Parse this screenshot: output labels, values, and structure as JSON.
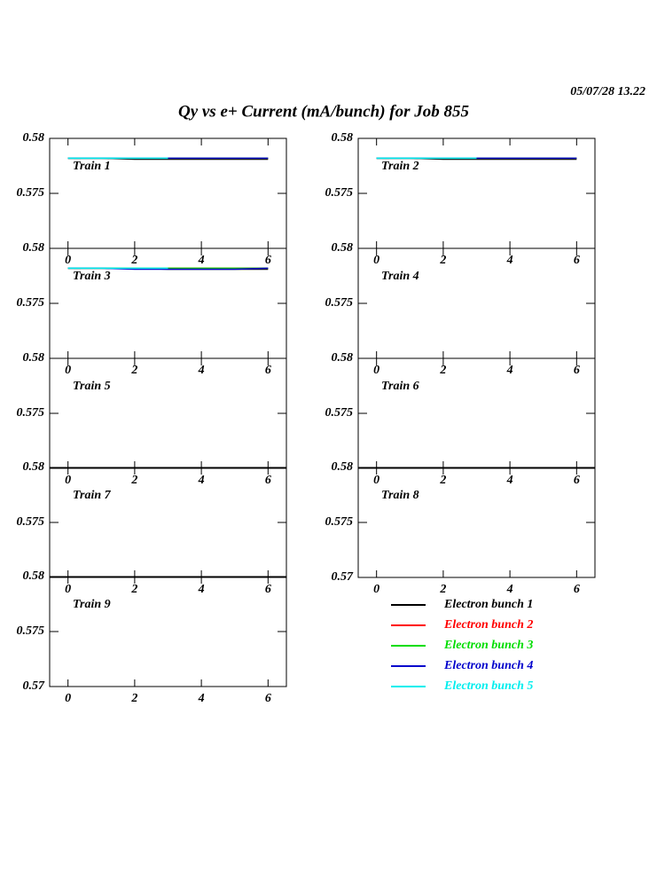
{
  "title": "Qy vs e+ Current (mA/bunch) for Job 855",
  "timestamp": "05/07/28   13.22",
  "chart_data": [
    {
      "type": "line",
      "title": "Train 1",
      "xlim": [
        -0.55,
        6.55
      ],
      "ylim": [
        0.57,
        0.58
      ],
      "xticks": [
        0,
        2,
        4,
        6
      ],
      "yticks": [
        0.575,
        0.58
      ],
      "x": [
        0,
        1,
        2,
        3,
        4,
        5,
        6
      ],
      "series": [
        {
          "name": "Electron bunch 1",
          "color": "#000000",
          "values": [
            0.5782,
            0.5782,
            0.5781,
            0.5781,
            0.5781,
            0.5781,
            0.5781
          ]
        },
        {
          "name": "Electron bunch 2",
          "color": "#ff0000",
          "values": [
            0.5782,
            0.5782,
            0.5782,
            0.5782,
            0.5782,
            0.5782,
            0.5782
          ]
        },
        {
          "name": "Electron bunch 3",
          "color": "#00dd00",
          "values": [
            0.5782,
            0.5782,
            0.5782,
            0.5782,
            0.5782,
            0.5782,
            0.5782
          ]
        },
        {
          "name": "Electron bunch 4",
          "color": "#0000cc",
          "values": [
            0.5782,
            0.5782,
            0.5782,
            0.5782,
            0.5782,
            0.5782,
            0.5782
          ]
        },
        {
          "name": "Electron bunch 5",
          "color": "#00eeee",
          "values": [
            0.5782,
            0.5782,
            0.5782,
            0.5782,
            null,
            null,
            null
          ]
        }
      ]
    },
    {
      "type": "line",
      "title": "Train 2",
      "xlim": [
        -0.55,
        6.55
      ],
      "ylim": [
        0.57,
        0.58
      ],
      "xticks": [
        0,
        2,
        4,
        6
      ],
      "yticks": [
        0.575,
        0.58
      ],
      "x": [
        0,
        1,
        2,
        3,
        4,
        5,
        6
      ],
      "series": [
        {
          "values": [
            0.5782,
            0.5782,
            0.5781,
            0.5781,
            0.5781,
            0.5781,
            0.5781
          ]
        },
        {
          "values": [
            0.5782,
            0.5782,
            0.5782,
            0.5782,
            0.5782,
            0.5782,
            0.5782
          ]
        },
        {
          "values": [
            0.5782,
            0.5782,
            0.5782,
            0.5782,
            0.5782,
            0.5782,
            0.5782
          ]
        },
        {
          "values": [
            0.5782,
            0.5782,
            0.5782,
            0.5782,
            0.5782,
            0.5782,
            0.5782
          ]
        },
        {
          "values": [
            0.5782,
            0.5782,
            0.5782,
            0.5782,
            null,
            null,
            null
          ]
        }
      ]
    },
    {
      "type": "line",
      "title": "Train 3",
      "xlim": [
        -0.55,
        6.55
      ],
      "ylim": [
        0.57,
        0.58
      ],
      "xticks": [
        0,
        2,
        4,
        6
      ],
      "yticks": [
        0.575,
        0.58
      ],
      "x": [
        0,
        1,
        2,
        3,
        4,
        5,
        6
      ],
      "series": [
        {
          "values": [
            0.5782,
            0.5782,
            0.5782,
            0.5781,
            0.5781,
            0.5781,
            0.5781
          ]
        },
        {
          "values": [
            0.5782,
            0.5782,
            0.5782,
            0.5782,
            0.5782,
            0.5782,
            0.5782
          ]
        },
        {
          "values": [
            0.5782,
            0.5782,
            0.5782,
            0.5782,
            0.5782,
            0.5782,
            0.5782
          ]
        },
        {
          "values": [
            0.5782,
            0.5782,
            0.5781,
            0.5781,
            0.5781,
            0.5781,
            0.5782
          ]
        },
        {
          "values": [
            0.5782,
            0.5782,
            0.5782,
            0.5782,
            null,
            null,
            null
          ]
        }
      ]
    },
    {
      "type": "line",
      "title": "Train 4",
      "xlim": [
        -0.55,
        6.55
      ],
      "ylim": [
        0.57,
        0.58
      ],
      "xticks": [
        0,
        2,
        4,
        6
      ],
      "yticks": [
        0.575,
        0.58
      ]
    },
    {
      "type": "line",
      "title": "Train 5",
      "xlim": [
        -0.55,
        6.55
      ],
      "ylim": [
        0.57,
        0.58
      ],
      "xticks": [
        0,
        2,
        4,
        6
      ],
      "yticks": [
        0.575,
        0.58
      ]
    },
    {
      "type": "line",
      "title": "Train 6",
      "xlim": [
        -0.55,
        6.55
      ],
      "ylim": [
        0.57,
        0.58
      ],
      "xticks": [
        0,
        2,
        4,
        6
      ],
      "yticks": [
        0.575,
        0.58
      ]
    },
    {
      "type": "line",
      "title": "Train 7",
      "xlim": [
        -0.55,
        6.55
      ],
      "ylim": [
        0.57,
        0.58
      ],
      "xticks": [
        0,
        2,
        4,
        6
      ],
      "yticks": [
        0.575,
        0.58
      ]
    },
    {
      "type": "line",
      "title": "Train 8",
      "xlim": [
        -0.55,
        6.55
      ],
      "ylim": [
        0.57,
        0.58
      ],
      "xticks": [
        0,
        2,
        4,
        6
      ],
      "yticks": [
        0.57,
        0.575,
        0.58
      ]
    },
    {
      "type": "line",
      "title": "Train 9",
      "xlim": [
        -0.55,
        6.55
      ],
      "ylim": [
        0.57,
        0.58
      ],
      "xticks": [
        0,
        2,
        4,
        6
      ],
      "yticks": [
        0.57,
        0.575,
        0.58
      ]
    }
  ]
}
